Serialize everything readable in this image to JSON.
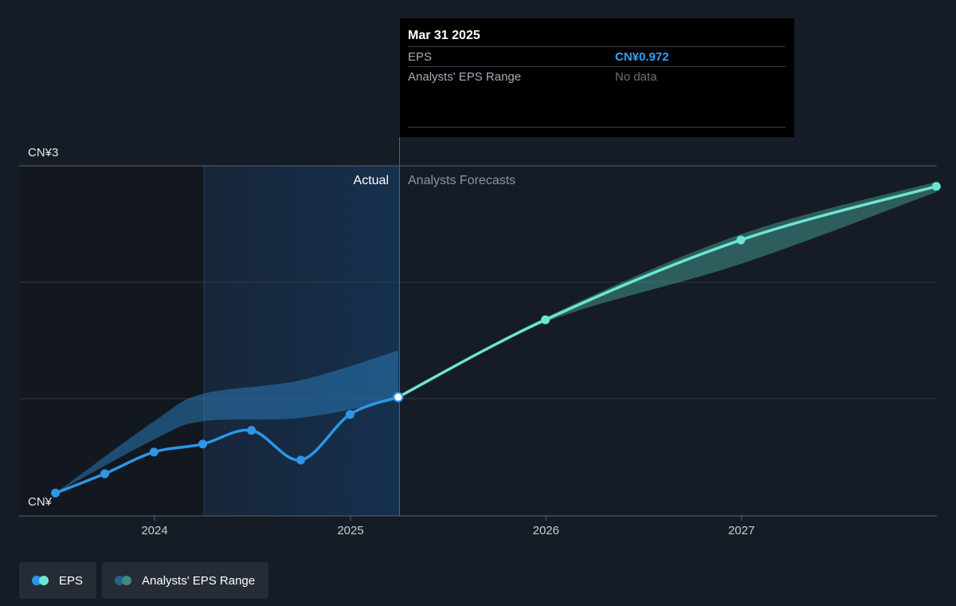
{
  "colors": {
    "background": "#161c26",
    "eps_actual": "#2c96e8",
    "eps_forecast": "#6ce6d2",
    "range_actual": "#2a78b5",
    "range_forecast": "#3e8a82",
    "eps_value": "#3a9ff0"
  },
  "labels": {
    "actual": "Actual",
    "forecasts": "Analysts Forecasts"
  },
  "tooltip": {
    "date": "Mar 31 2025",
    "eps_label": "EPS",
    "eps_value": "CN¥0.972",
    "range_label": "Analysts' EPS Range",
    "range_value": "No data"
  },
  "legend": [
    {
      "label": "EPS",
      "icon": "eps-legend-dots"
    },
    {
      "label": "Analysts' EPS Range",
      "icon": "range-legend-dots"
    }
  ],
  "chart_data": {
    "type": "line",
    "title": "",
    "xlabel": "",
    "ylabel": "",
    "x_ticks": [
      "2024",
      "2025",
      "2026",
      "2027"
    ],
    "y_tick_labels": [
      "CN¥3",
      "CN¥"
    ],
    "ylim": [
      0,
      3
    ],
    "divider_date": "2025-03-31",
    "grid": true,
    "legend_position": "bottom-left",
    "series": [
      {
        "name": "EPS",
        "segment": "actual",
        "points": [
          {
            "date": "2023-06-30",
            "value": 0.13
          },
          {
            "date": "2023-09-30",
            "value": 0.3
          },
          {
            "date": "2023-12-31",
            "value": 0.49
          },
          {
            "date": "2024-03-31",
            "value": 0.56
          },
          {
            "date": "2024-06-30",
            "value": 0.68
          },
          {
            "date": "2024-09-30",
            "value": 0.42
          },
          {
            "date": "2024-12-31",
            "value": 0.82
          },
          {
            "date": "2025-03-31",
            "value": 0.972
          }
        ]
      },
      {
        "name": "EPS",
        "segment": "forecast",
        "points": [
          {
            "date": "2025-03-31",
            "value": 0.972
          },
          {
            "date": "2025-12-31",
            "value": 1.65
          },
          {
            "date": "2026-12-31",
            "value": 2.35
          },
          {
            "date": "2027-12-31",
            "value": 2.82
          }
        ]
      },
      {
        "name": "Analysts' EPS Range",
        "segment": "actual",
        "points": [
          {
            "date": "2023-06-30",
            "low": 0.13,
            "high": 0.13
          },
          {
            "date": "2023-12-31",
            "low": 0.6,
            "high": 0.76
          },
          {
            "date": "2024-03-31",
            "low": 0.76,
            "high": 1.0
          },
          {
            "date": "2024-09-30",
            "low": 0.79,
            "high": 1.12
          },
          {
            "date": "2025-03-31",
            "low": 0.95,
            "high": 1.38
          }
        ]
      },
      {
        "name": "Analysts' EPS Range",
        "segment": "forecast",
        "points": [
          {
            "date": "2025-03-31",
            "low": 0.972,
            "high": 0.972
          },
          {
            "date": "2025-12-31",
            "low": 1.63,
            "high": 1.67
          },
          {
            "date": "2026-12-31",
            "low": 2.14,
            "high": 2.4
          },
          {
            "date": "2027-12-31",
            "low": 2.77,
            "high": 2.86
          }
        ]
      }
    ]
  }
}
